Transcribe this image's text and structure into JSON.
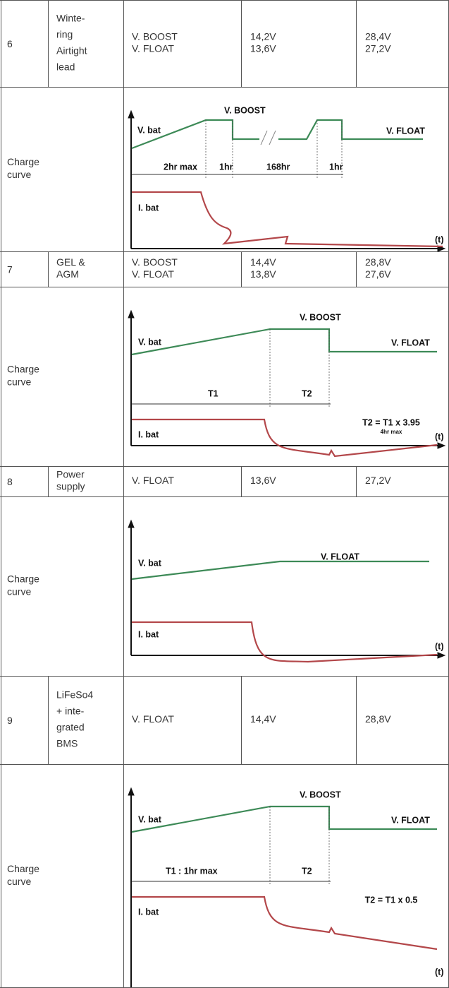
{
  "rows": [
    {
      "number": "6",
      "type": [
        "Winte-",
        "ring",
        "Airtight",
        "lead"
      ],
      "mode": [
        "V. BOOST",
        "V. FLOAT"
      ],
      "v12": [
        "14,2V",
        "13,6V"
      ],
      "v24": [
        "28,4V",
        "27,2V"
      ],
      "curve": {
        "label": [
          "Charge",
          "curve"
        ],
        "texts": [
          "V. BOOST",
          "V. bat",
          "V. FLOAT",
          "2hr max",
          "1hr",
          "168hr",
          "1hr",
          "I. bat",
          "(t)"
        ]
      }
    },
    {
      "number": "7",
      "type": [
        "GEL &",
        "AGM"
      ],
      "mode": [
        "V. BOOST",
        "V. FLOAT"
      ],
      "v12": [
        "14,4V",
        "13,8V"
      ],
      "v24": [
        "28,8V",
        "27,6V"
      ],
      "curve": {
        "label": [
          "Charge",
          "curve"
        ],
        "texts": [
          "V. BOOST",
          "V. bat",
          "V. FLOAT",
          "T1",
          "T2",
          "I. bat",
          "T2 = T1 x 3.95",
          "4hr max",
          "(t)"
        ]
      }
    },
    {
      "number": "8",
      "type": [
        "Power",
        "supply"
      ],
      "mode": [
        "V. FLOAT"
      ],
      "v12": [
        "13,6V"
      ],
      "v24": [
        "27,2V"
      ],
      "curve": {
        "label": [
          "Charge",
          "curve"
        ],
        "texts": [
          "V. bat",
          "V. FLOAT",
          "I. bat",
          "(t)"
        ]
      }
    },
    {
      "number": "9",
      "type": [
        "LiFeSo4",
        "+ inte-",
        "grated",
        "BMS"
      ],
      "mode": [
        "V. FLOAT"
      ],
      "v12": [
        "14,4V"
      ],
      "v24": [
        "28,8V"
      ],
      "curve": {
        "label": [
          "Charge",
          "curve"
        ],
        "texts": [
          "V. BOOST",
          "V. bat",
          "V. FLOAT",
          "T1 : 1hr max",
          "T2",
          "I. bat",
          "T2 = T1 x 0.5",
          "(t)"
        ]
      }
    }
  ]
}
